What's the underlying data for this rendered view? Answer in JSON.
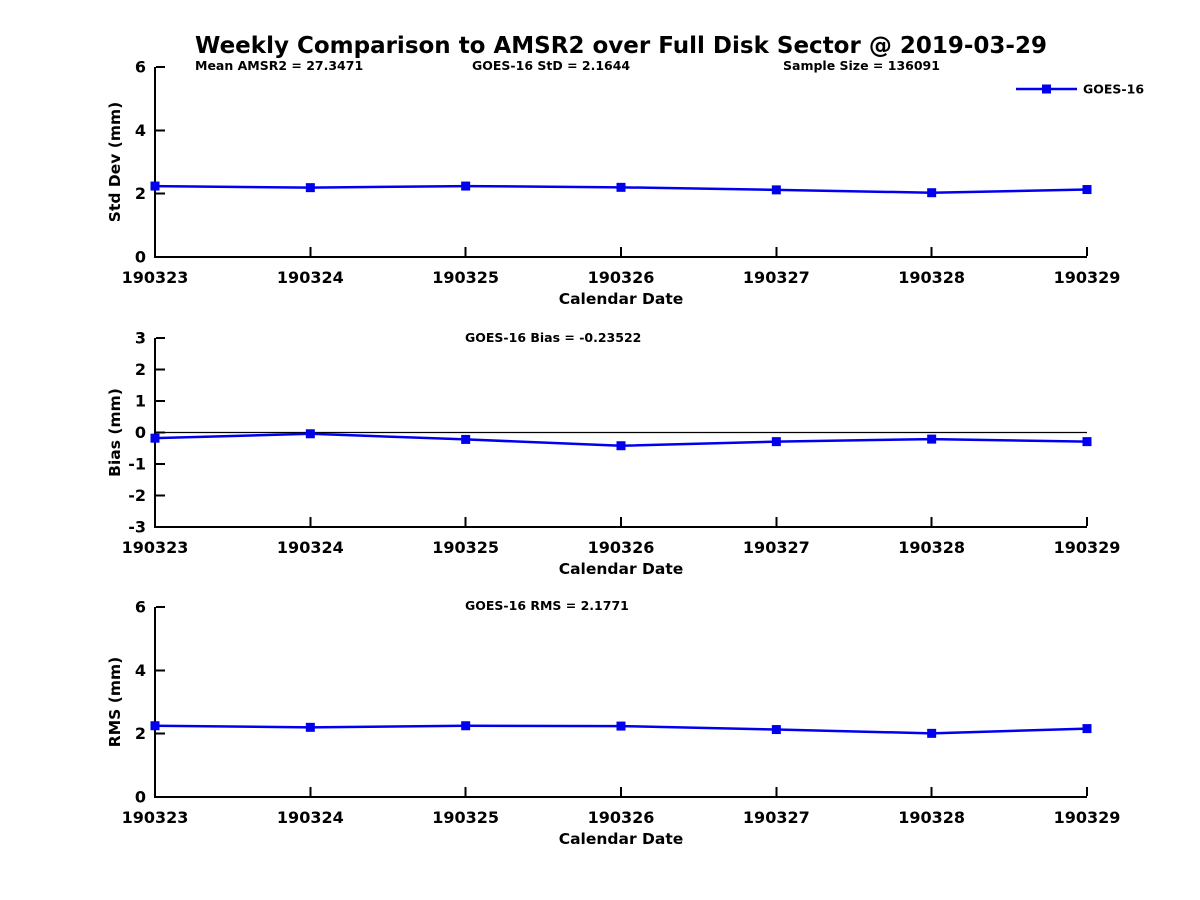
{
  "figure": {
    "title": "Weekly Comparison to AMSR2 over Full Disk Sector @ 2019-03-29",
    "background": "#ffffff",
    "text_color": "#000000",
    "series_color": "#0000ee",
    "axis_color": "#000000"
  },
  "legend": {
    "label": "GOES-16",
    "color": "#0000ee",
    "marker": "square"
  },
  "chart_data": [
    {
      "type": "line",
      "id": "std-dev",
      "annotations": [
        "Mean AMSR2 = 27.3471",
        "GOES-16 StD = 2.1644",
        "Sample Size = 136091"
      ],
      "categories": [
        "190323",
        "190324",
        "190325",
        "190326",
        "190327",
        "190328",
        "190329"
      ],
      "series": [
        {
          "name": "GOES-16",
          "color": "#0000ee",
          "marker": "square",
          "values": [
            2.24,
            2.19,
            2.24,
            2.2,
            2.12,
            2.03,
            2.13
          ]
        }
      ],
      "xlabel": "Calendar Date",
      "ylabel": "Std Dev (mm)",
      "ylim": [
        0,
        6
      ],
      "yticks": [
        0,
        2,
        4,
        6
      ],
      "grid": false,
      "legend_visible": true,
      "legend_position": "top-right",
      "zero_line": false
    },
    {
      "type": "line",
      "id": "bias",
      "annotations": [
        "GOES-16 Bias  = -0.23522"
      ],
      "categories": [
        "190323",
        "190324",
        "190325",
        "190326",
        "190327",
        "190328",
        "190329"
      ],
      "series": [
        {
          "name": "GOES-16",
          "color": "#0000ee",
          "marker": "square",
          "values": [
            -0.18,
            -0.04,
            -0.22,
            -0.42,
            -0.29,
            -0.21,
            -0.29
          ]
        }
      ],
      "xlabel": "Calendar Date",
      "ylabel": "Bias (mm)",
      "ylim": [
        -3,
        3
      ],
      "yticks": [
        -3,
        -2,
        -1,
        0,
        1,
        2,
        3
      ],
      "grid": false,
      "legend_visible": false,
      "zero_line": true
    },
    {
      "type": "line",
      "id": "rms",
      "annotations": [
        "GOES-16 RMS = 2.1771"
      ],
      "categories": [
        "190323",
        "190324",
        "190325",
        "190326",
        "190327",
        "190328",
        "190329"
      ],
      "series": [
        {
          "name": "GOES-16",
          "color": "#0000ee",
          "marker": "square",
          "values": [
            2.25,
            2.2,
            2.25,
            2.24,
            2.13,
            2.01,
            2.16
          ]
        }
      ],
      "xlabel": "Calendar Date",
      "ylabel": "RMS (mm)",
      "ylim": [
        0,
        6
      ],
      "yticks": [
        0,
        2,
        4,
        6
      ],
      "grid": false,
      "legend_visible": false,
      "zero_line": false
    }
  ]
}
